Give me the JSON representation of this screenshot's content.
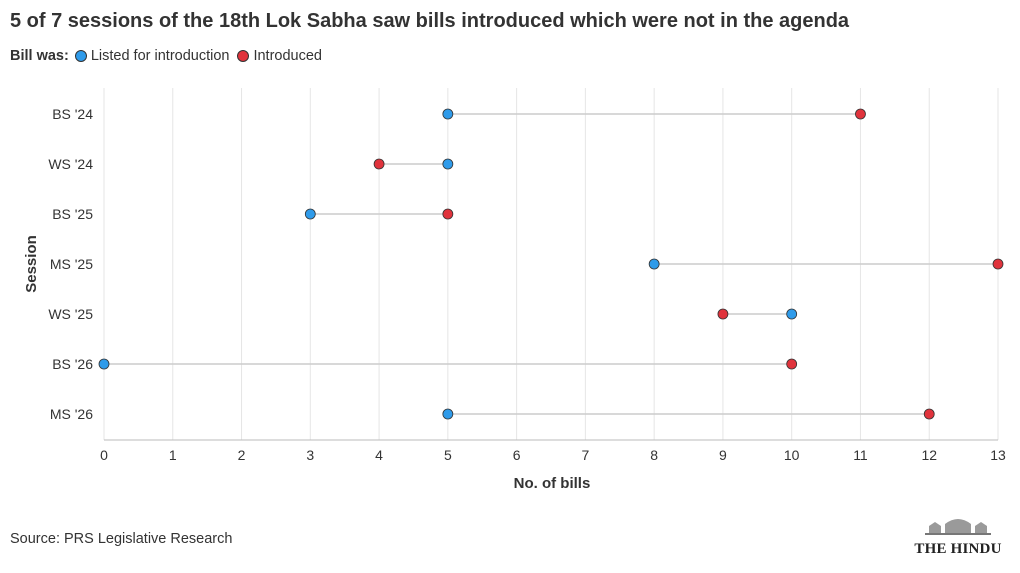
{
  "title": "5 of 7 sessions of the 18th Lok Sabha saw bills introduced which were not in the agenda",
  "legend": {
    "label": "Bill was:",
    "items": [
      {
        "name": "Listed for introduction",
        "color": "#2f9bea"
      },
      {
        "name": "Introduced",
        "color": "#e0333c"
      }
    ]
  },
  "source": "Source: PRS Legislative Research",
  "logo": {
    "text": "THE HINDU"
  },
  "chart_data": {
    "type": "dumbbell",
    "xlabel": "No. of bills",
    "ylabel": "Session",
    "xlim": [
      0,
      13
    ],
    "xticks": [
      0,
      1,
      2,
      3,
      4,
      5,
      6,
      7,
      8,
      9,
      10,
      11,
      12,
      13
    ],
    "grid": true,
    "legend_position": "top-left",
    "categories": [
      "BS '24",
      "WS '24",
      "BS '25",
      "MS '25",
      "WS '25",
      "BS '26",
      "MS '26"
    ],
    "series": [
      {
        "name": "Listed for introduction",
        "color": "#2f9bea",
        "values": [
          5,
          5,
          3,
          8,
          10,
          0,
          5
        ]
      },
      {
        "name": "Introduced",
        "color": "#e0333c",
        "values": [
          11,
          4,
          5,
          13,
          9,
          10,
          12
        ]
      }
    ]
  }
}
